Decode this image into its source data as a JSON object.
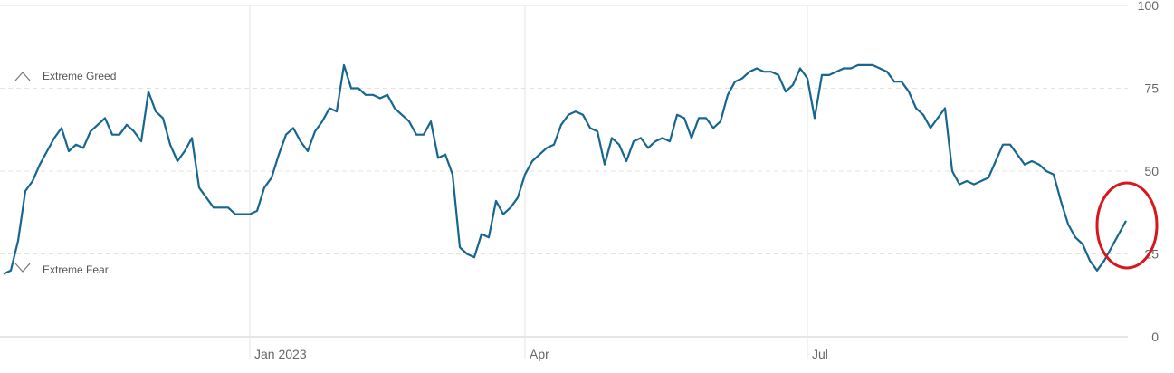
{
  "chart_data": {
    "type": "line",
    "annotations": [
      "Extreme Greed",
      "Extreme Fear"
    ],
    "categories": [
      null,
      null,
      null,
      null,
      null,
      null,
      null,
      null,
      null,
      null,
      null,
      null,
      null,
      null,
      null,
      null,
      null,
      null,
      null,
      null,
      null,
      null,
      null,
      null,
      null,
      null,
      null,
      null,
      null,
      null,
      null,
      null,
      null,
      null,
      "Jan 2023",
      null,
      null,
      null,
      null,
      null,
      null,
      null,
      null,
      null,
      null,
      null,
      null,
      null,
      null,
      null,
      null,
      null,
      null,
      null,
      null,
      null,
      null,
      null,
      null,
      null,
      null,
      null,
      null,
      null,
      null,
      null,
      null,
      null,
      null,
      null,
      null,
      null,
      "Apr",
      null,
      null,
      null,
      null,
      null,
      null,
      null,
      null,
      null,
      null,
      null,
      null,
      null,
      null,
      null,
      null,
      null,
      null,
      null,
      null,
      null,
      null,
      null,
      null,
      null,
      null,
      null,
      null,
      null,
      null,
      null,
      null,
      null,
      null,
      null,
      null,
      null,
      null,
      "Jul",
      null,
      null,
      null,
      null,
      null,
      null,
      null,
      null,
      null,
      null,
      null,
      null,
      null,
      null,
      null,
      null,
      null,
      null,
      null,
      null,
      null,
      null,
      null,
      null,
      null,
      null,
      null,
      null,
      null,
      null,
      null,
      null,
      null,
      null,
      null,
      null,
      null,
      null,
      null,
      null,
      null,
      null,
      null,
      null
    ],
    "series": [
      {
        "color": "#17668f",
        "values": [
          19,
          20,
          29,
          44,
          47,
          52,
          56,
          60,
          63,
          56,
          58,
          57,
          62,
          64,
          66,
          61,
          61,
          64,
          62,
          59,
          74,
          68,
          66,
          58,
          53,
          56,
          60,
          45,
          42,
          39,
          39,
          39,
          37,
          37,
          37,
          38,
          45,
          48,
          55,
          61,
          63,
          59,
          56,
          62,
          65,
          69,
          68,
          82,
          75,
          75,
          73,
          73,
          72,
          73,
          69,
          67,
          65,
          61,
          61,
          65,
          54,
          55,
          49,
          27,
          25,
          24,
          31,
          30,
          41,
          37,
          39,
          42,
          49,
          53,
          55,
          57,
          58,
          64,
          67,
          68,
          67,
          63,
          62,
          52,
          60,
          58,
          53,
          59,
          60,
          57,
          59,
          60,
          59,
          67,
          66,
          60,
          66,
          66,
          63,
          65,
          73,
          77,
          78,
          80,
          81,
          80,
          80,
          79,
          74,
          76,
          81,
          78,
          66,
          79,
          79,
          80,
          81,
          81,
          82,
          82,
          82,
          81,
          80,
          77,
          77,
          74,
          69,
          67,
          63,
          66,
          69,
          50,
          46,
          47,
          46,
          47,
          48,
          53,
          58,
          58,
          55,
          52,
          53,
          52,
          50,
          49,
          41,
          34,
          30,
          28,
          23,
          20,
          23,
          27,
          31,
          35
        ]
      }
    ],
    "ylim": [
      0,
      100
    ],
    "yticks": [
      0,
      25,
      50,
      75,
      100
    ],
    "grid": true
  }
}
